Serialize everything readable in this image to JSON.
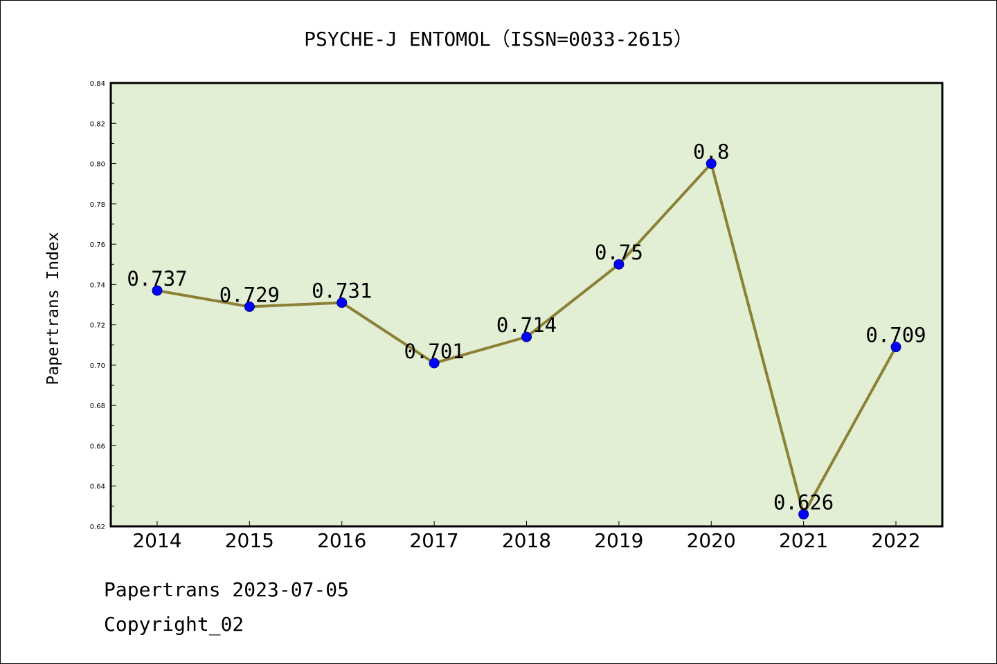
{
  "chart_data": {
    "type": "line",
    "title": "PSYCHE-J ENTOMOL（ISSN=0033-2615）",
    "xlabel": "",
    "ylabel": "Papertrans Index",
    "categories": [
      "2014",
      "2015",
      "2016",
      "2017",
      "2018",
      "2019",
      "2020",
      "2021",
      "2022"
    ],
    "series": [
      {
        "values": [
          0.737,
          0.729,
          0.731,
          0.701,
          0.714,
          0.75,
          0.8,
          0.626,
          0.709
        ],
        "labels": [
          "0.737",
          "0.729",
          "0.731",
          "0.701",
          "0.714",
          "0.75",
          "0.8",
          "0.626",
          "0.709"
        ]
      }
    ],
    "ylim": [
      0.62,
      0.84
    ],
    "yticks": [
      "0.62",
      "0.64",
      "0.66",
      "0.68",
      "0.70",
      "0.72",
      "0.74",
      "0.76",
      "0.78",
      "0.80",
      "0.82",
      "0.84"
    ],
    "grid": false,
    "legend": "none"
  },
  "colors": {
    "plot_background": "#e2efd5",
    "line": "#8b8035",
    "marker_fill": "#0000ff",
    "marker_edge": "#000080",
    "axes": "#000000"
  },
  "footer": {
    "date_line": "Papertrans 2023-07-05",
    "copyright_line": "Copyright_02"
  }
}
